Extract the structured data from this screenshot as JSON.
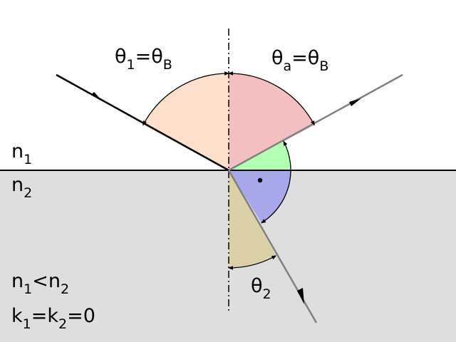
{
  "labels": {
    "theta1": {
      "base": "θ",
      "sub1": "1",
      "eq": "=θ",
      "sub2": "B"
    },
    "thetaA": {
      "base": "θ",
      "sub1": "a",
      "eq": "=θ",
      "sub2": "B"
    },
    "theta2": {
      "base": "θ",
      "sub1": "2"
    },
    "n1": {
      "base": "n",
      "sub": "1"
    },
    "n2": {
      "base": "n",
      "sub": "2"
    },
    "inequality": {
      "base1": "n",
      "sub1": "1",
      "op": "<",
      "base2": "n",
      "sub2": "2"
    },
    "extinction": {
      "base1": "k",
      "sub1": "1",
      "eq1": "=",
      "base2": "k",
      "sub2": "2",
      "eq2": "=0"
    }
  },
  "colors": {
    "upper_medium": "#ffffff",
    "lower_medium": "#dedede",
    "incidence_sector": "#ffe0cc",
    "reflection_sector": "#f4bfc0",
    "refracted_reflected_sector": "#b4fdb4",
    "right_angle_sector": "#a7a7ea",
    "transmission_sector": "#dbd0a8",
    "incident_ray": "#000000",
    "reflected_ray": "#808080",
    "refracted_ray": "#808080",
    "normal_line": "#000000",
    "interface_line": "#000000"
  },
  "icons": {
    "ray_direction": "arrowhead",
    "angle_marks": "double-arrow-arc",
    "right_angle_mark": "dot"
  }
}
